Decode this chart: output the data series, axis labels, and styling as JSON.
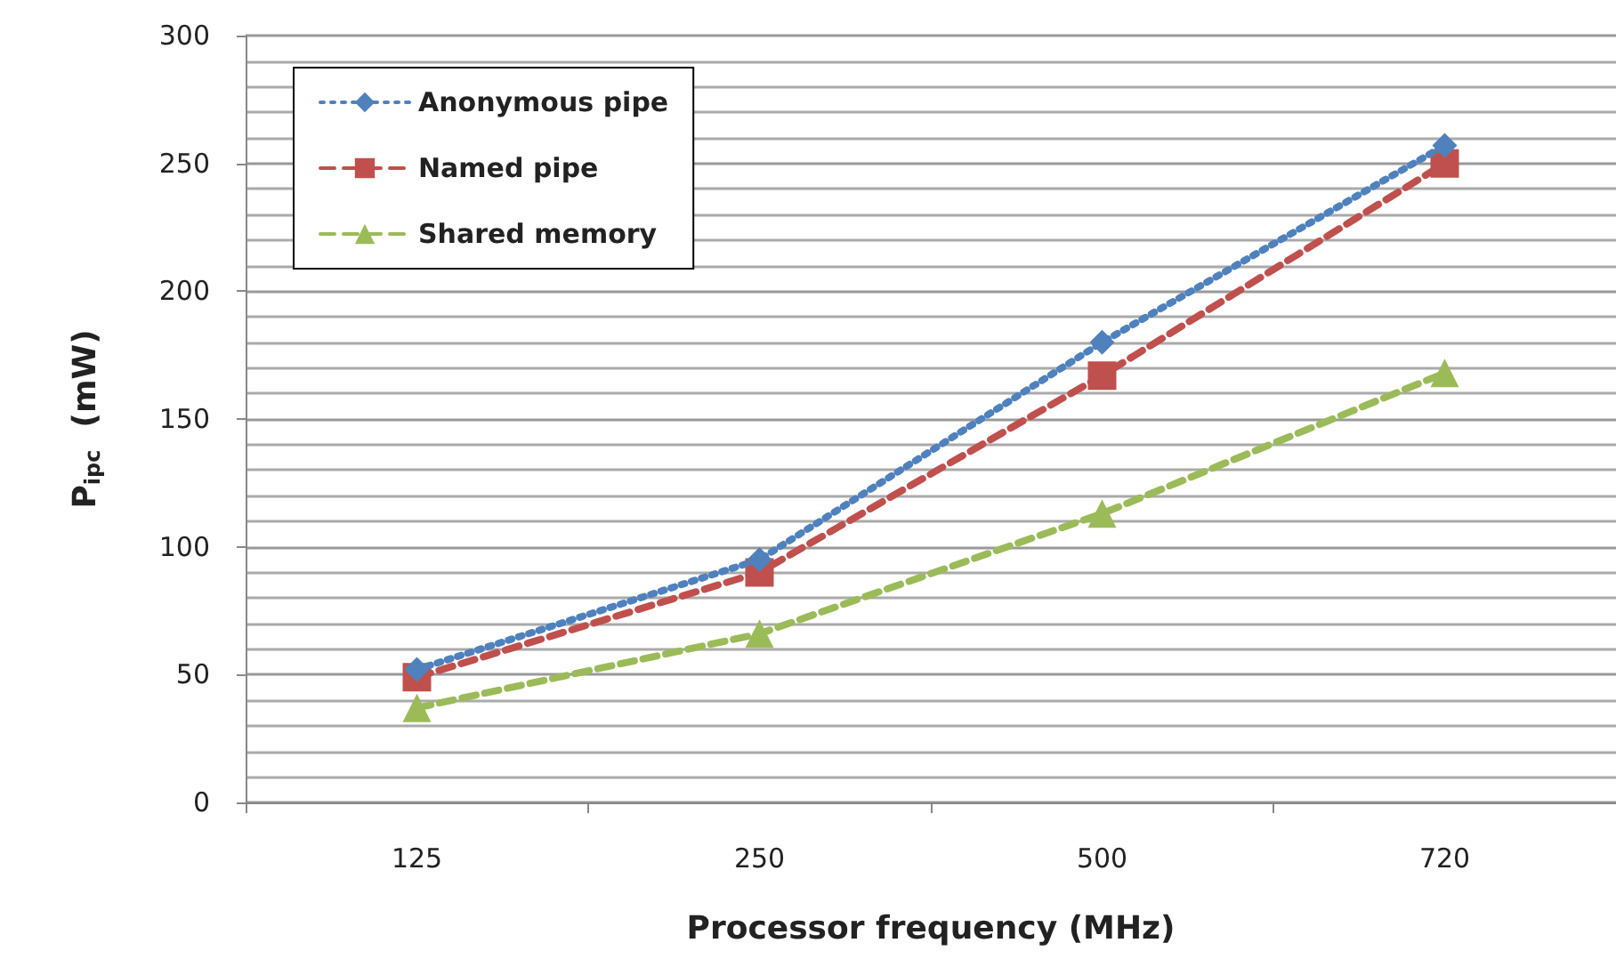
{
  "chart_data": {
    "type": "line",
    "xlabel": "Processor frequency (MHz)",
    "ylabel": "P$_{ipc}$  (mW)",
    "categories": [
      "125",
      "250",
      "500",
      "720"
    ],
    "series": [
      {
        "name": "Anonymous pipe",
        "color": "#4f81bd",
        "values": [
          52,
          95,
          180,
          257
        ],
        "marker": "diamond",
        "line_style": "dotted"
      },
      {
        "name": "Named pipe",
        "color": "#c0504d",
        "values": [
          49,
          90,
          167,
          250
        ],
        "marker": "square",
        "line_style": "dashed"
      },
      {
        "name": "Shared memory",
        "color": "#9bbb59",
        "values": [
          37,
          66,
          113,
          168
        ],
        "marker": "triangle",
        "line_style": "dashed"
      }
    ],
    "ylim": [
      0,
      300
    ],
    "yticks": [
      0,
      50,
      100,
      150,
      200,
      250,
      300
    ],
    "grid": "y",
    "legend": "top left"
  }
}
